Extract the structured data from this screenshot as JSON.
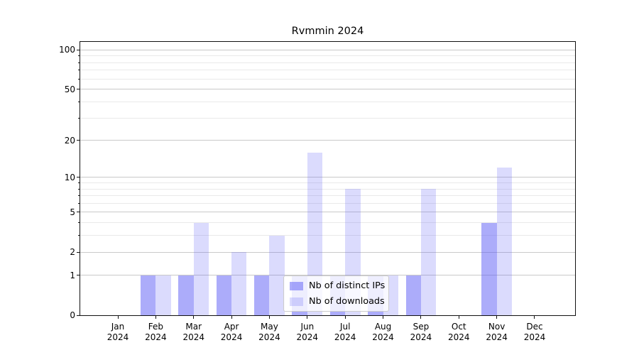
{
  "title": "Rvmmin 2024",
  "legend": {
    "items": [
      {
        "label": "Nb of distinct IPs",
        "color": "rgba(90,90,245,0.5)"
      },
      {
        "label": "Nb of downloads",
        "color": "rgba(90,90,245,0.22)"
      }
    ]
  },
  "chart_data": {
    "type": "bar",
    "title": "Rvmmin 2024",
    "categories": [
      "Jan 2024",
      "Feb 2024",
      "Mar 2024",
      "Apr 2024",
      "May 2024",
      "Jun 2024",
      "Jul 2024",
      "Aug 2024",
      "Sep 2024",
      "Oct 2024",
      "Nov 2024",
      "Dec 2024"
    ],
    "series": [
      {
        "name": "Nb of distinct IPs",
        "color": "rgba(90,90,245,0.5)",
        "values": [
          0,
          1,
          1,
          1,
          1,
          1,
          1,
          1,
          1,
          0,
          4,
          0
        ]
      },
      {
        "name": "Nb of downloads",
        "color": "rgba(90,90,245,0.22)",
        "values": [
          0,
          1,
          4,
          2,
          3,
          16,
          8,
          1,
          8,
          0,
          12,
          0
        ]
      }
    ],
    "y_scale": "log1p",
    "ylim": [
      0,
      115.3
    ],
    "y_major_ticks": [
      100,
      50,
      20,
      10,
      5,
      2,
      1,
      0
    ],
    "y_minor_ticks": [
      3,
      4,
      6,
      7,
      8,
      9,
      30,
      40,
      60,
      70,
      80,
      90
    ],
    "xlabel": "",
    "ylabel": "",
    "grid": true,
    "legend_position": "lower center"
  },
  "colors": {
    "grid_major": "#c9c9c9",
    "grid_minor": "#e9e9e9",
    "spine": "#111111",
    "legend_border": "#cccccc",
    "legend_bg": "rgba(255,255,255,0.8)"
  }
}
